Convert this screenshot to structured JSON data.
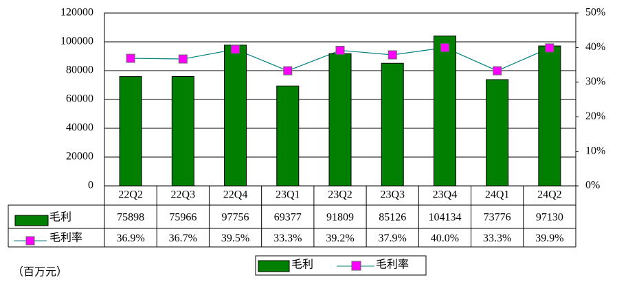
{
  "chart_data": {
    "type": "bar-line",
    "categories": [
      "22Q2",
      "22Q3",
      "22Q4",
      "23Q1",
      "23Q2",
      "23Q3",
      "23Q4",
      "24Q1",
      "24Q2"
    ],
    "series": [
      {
        "name": "毛利",
        "type": "bar",
        "color": "#007f00",
        "values": [
          75898,
          75966,
          97756,
          69377,
          91809,
          85126,
          104134,
          73776,
          97130
        ]
      },
      {
        "name": "毛利率",
        "type": "line",
        "axis": "y2",
        "color": "#008080",
        "marker_color": "#ff00ff",
        "values": [
          36.9,
          36.7,
          39.5,
          33.3,
          39.2,
          37.9,
          40.0,
          33.3,
          39.9
        ],
        "value_labels": [
          "36.9%",
          "36.7%",
          "39.5%",
          "33.3%",
          "39.2%",
          "37.9%",
          "40.0%",
          "33.3%",
          "39.9%"
        ]
      }
    ],
    "ylim": [
      0,
      120000
    ],
    "yticks": [
      0,
      20000,
      40000,
      60000,
      80000,
      100000,
      120000
    ],
    "y2lim": [
      0,
      50
    ],
    "y2ticks": [
      {
        "value": 0,
        "label": "0%"
      },
      {
        "value": 10,
        "label": "10%"
      },
      {
        "value": 20,
        "label": "20%"
      },
      {
        "value": 30,
        "label": "30%"
      },
      {
        "value": 40,
        "label": "40%"
      },
      {
        "value": 50,
        "label": "50%"
      }
    ],
    "grid": true,
    "unit_note": "（百万元）"
  }
}
